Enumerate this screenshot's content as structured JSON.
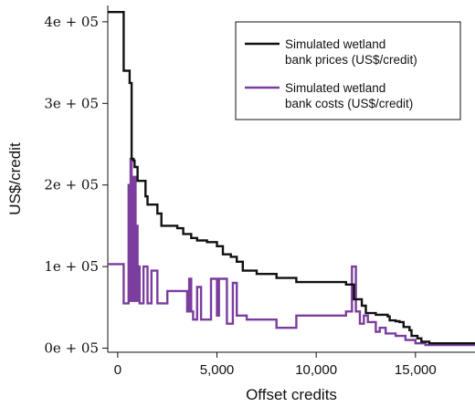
{
  "chart_data": {
    "type": "line",
    "xlabel": "Offset credits",
    "ylabel": "US$/credit",
    "xlim": [
      -500,
      18000
    ],
    "ylim": [
      -5000,
      420000
    ],
    "x_ticks": [
      0,
      5000,
      10000,
      15000
    ],
    "x_tick_labels": [
      "0",
      "5,000",
      "10,000",
      "15,000"
    ],
    "y_ticks": [
      0,
      100000,
      200000,
      300000,
      400000
    ],
    "y_tick_labels": [
      "0e + 05",
      "1e + 05",
      "2e + 05",
      "3e + 05",
      "4e + 05"
    ],
    "legend_position": "top-right",
    "grid": false,
    "series": [
      {
        "name": "Simulated wetland bank prices (US$/credit)",
        "color": "#111111",
        "step": true,
        "x": [
          -500,
          300,
          600,
          700,
          800,
          850,
          1000,
          1400,
          1500,
          2000,
          2200,
          3000,
          3300,
          3700,
          4000,
          4500,
          5000,
          5300,
          5700,
          6000,
          6300,
          7000,
          8000,
          9000,
          11500,
          11900,
          12300,
          12500,
          13000,
          13600,
          13700,
          14000,
          14200,
          14400,
          14700,
          14800,
          15100,
          15300,
          15700,
          18000
        ],
        "y": [
          412000,
          340000,
          325000,
          232000,
          230000,
          222000,
          205000,
          186000,
          176000,
          165000,
          150000,
          147000,
          140000,
          135000,
          132000,
          130000,
          125000,
          115000,
          112000,
          106000,
          95000,
          91000,
          86000,
          81000,
          78000,
          60000,
          52000,
          43000,
          41000,
          39000,
          34000,
          33000,
          32000,
          26000,
          22000,
          15000,
          12000,
          8000,
          6000,
          6000
        ]
      },
      {
        "name": "Simulated wetland bank costs (US$/credit)",
        "color": "#7b3d9e",
        "step": true,
        "x": [
          -500,
          200,
          300,
          500,
          550,
          600,
          650,
          700,
          800,
          900,
          950,
          1000,
          1050,
          1100,
          1200,
          1300,
          1500,
          1700,
          2000,
          2500,
          3300,
          3500,
          3600,
          3700,
          3800,
          4000,
          4200,
          4400,
          4700,
          5000,
          5100,
          5500,
          5600,
          5800,
          6000,
          6500,
          8000,
          9000,
          10000,
          10500,
          11500,
          11800,
          12000,
          12050,
          12200,
          12400,
          12600,
          13000,
          13200,
          13500,
          14000,
          14500,
          15000,
          15500,
          18000
        ],
        "y": [
          103000,
          103000,
          55000,
          55000,
          200000,
          58000,
          232000,
          58000,
          210000,
          58000,
          150000,
          58000,
          100000,
          55000,
          55000,
          100000,
          55000,
          95000,
          55000,
          70000,
          70000,
          45000,
          85000,
          45000,
          35000,
          75000,
          35000,
          35000,
          85000,
          40000,
          85000,
          30000,
          30000,
          80000,
          40000,
          35000,
          25000,
          40000,
          40000,
          40000,
          45000,
          100000,
          45000,
          45000,
          30000,
          40000,
          32000,
          20000,
          25000,
          18000,
          15000,
          10000,
          6000,
          4000,
          4000
        ]
      }
    ]
  }
}
